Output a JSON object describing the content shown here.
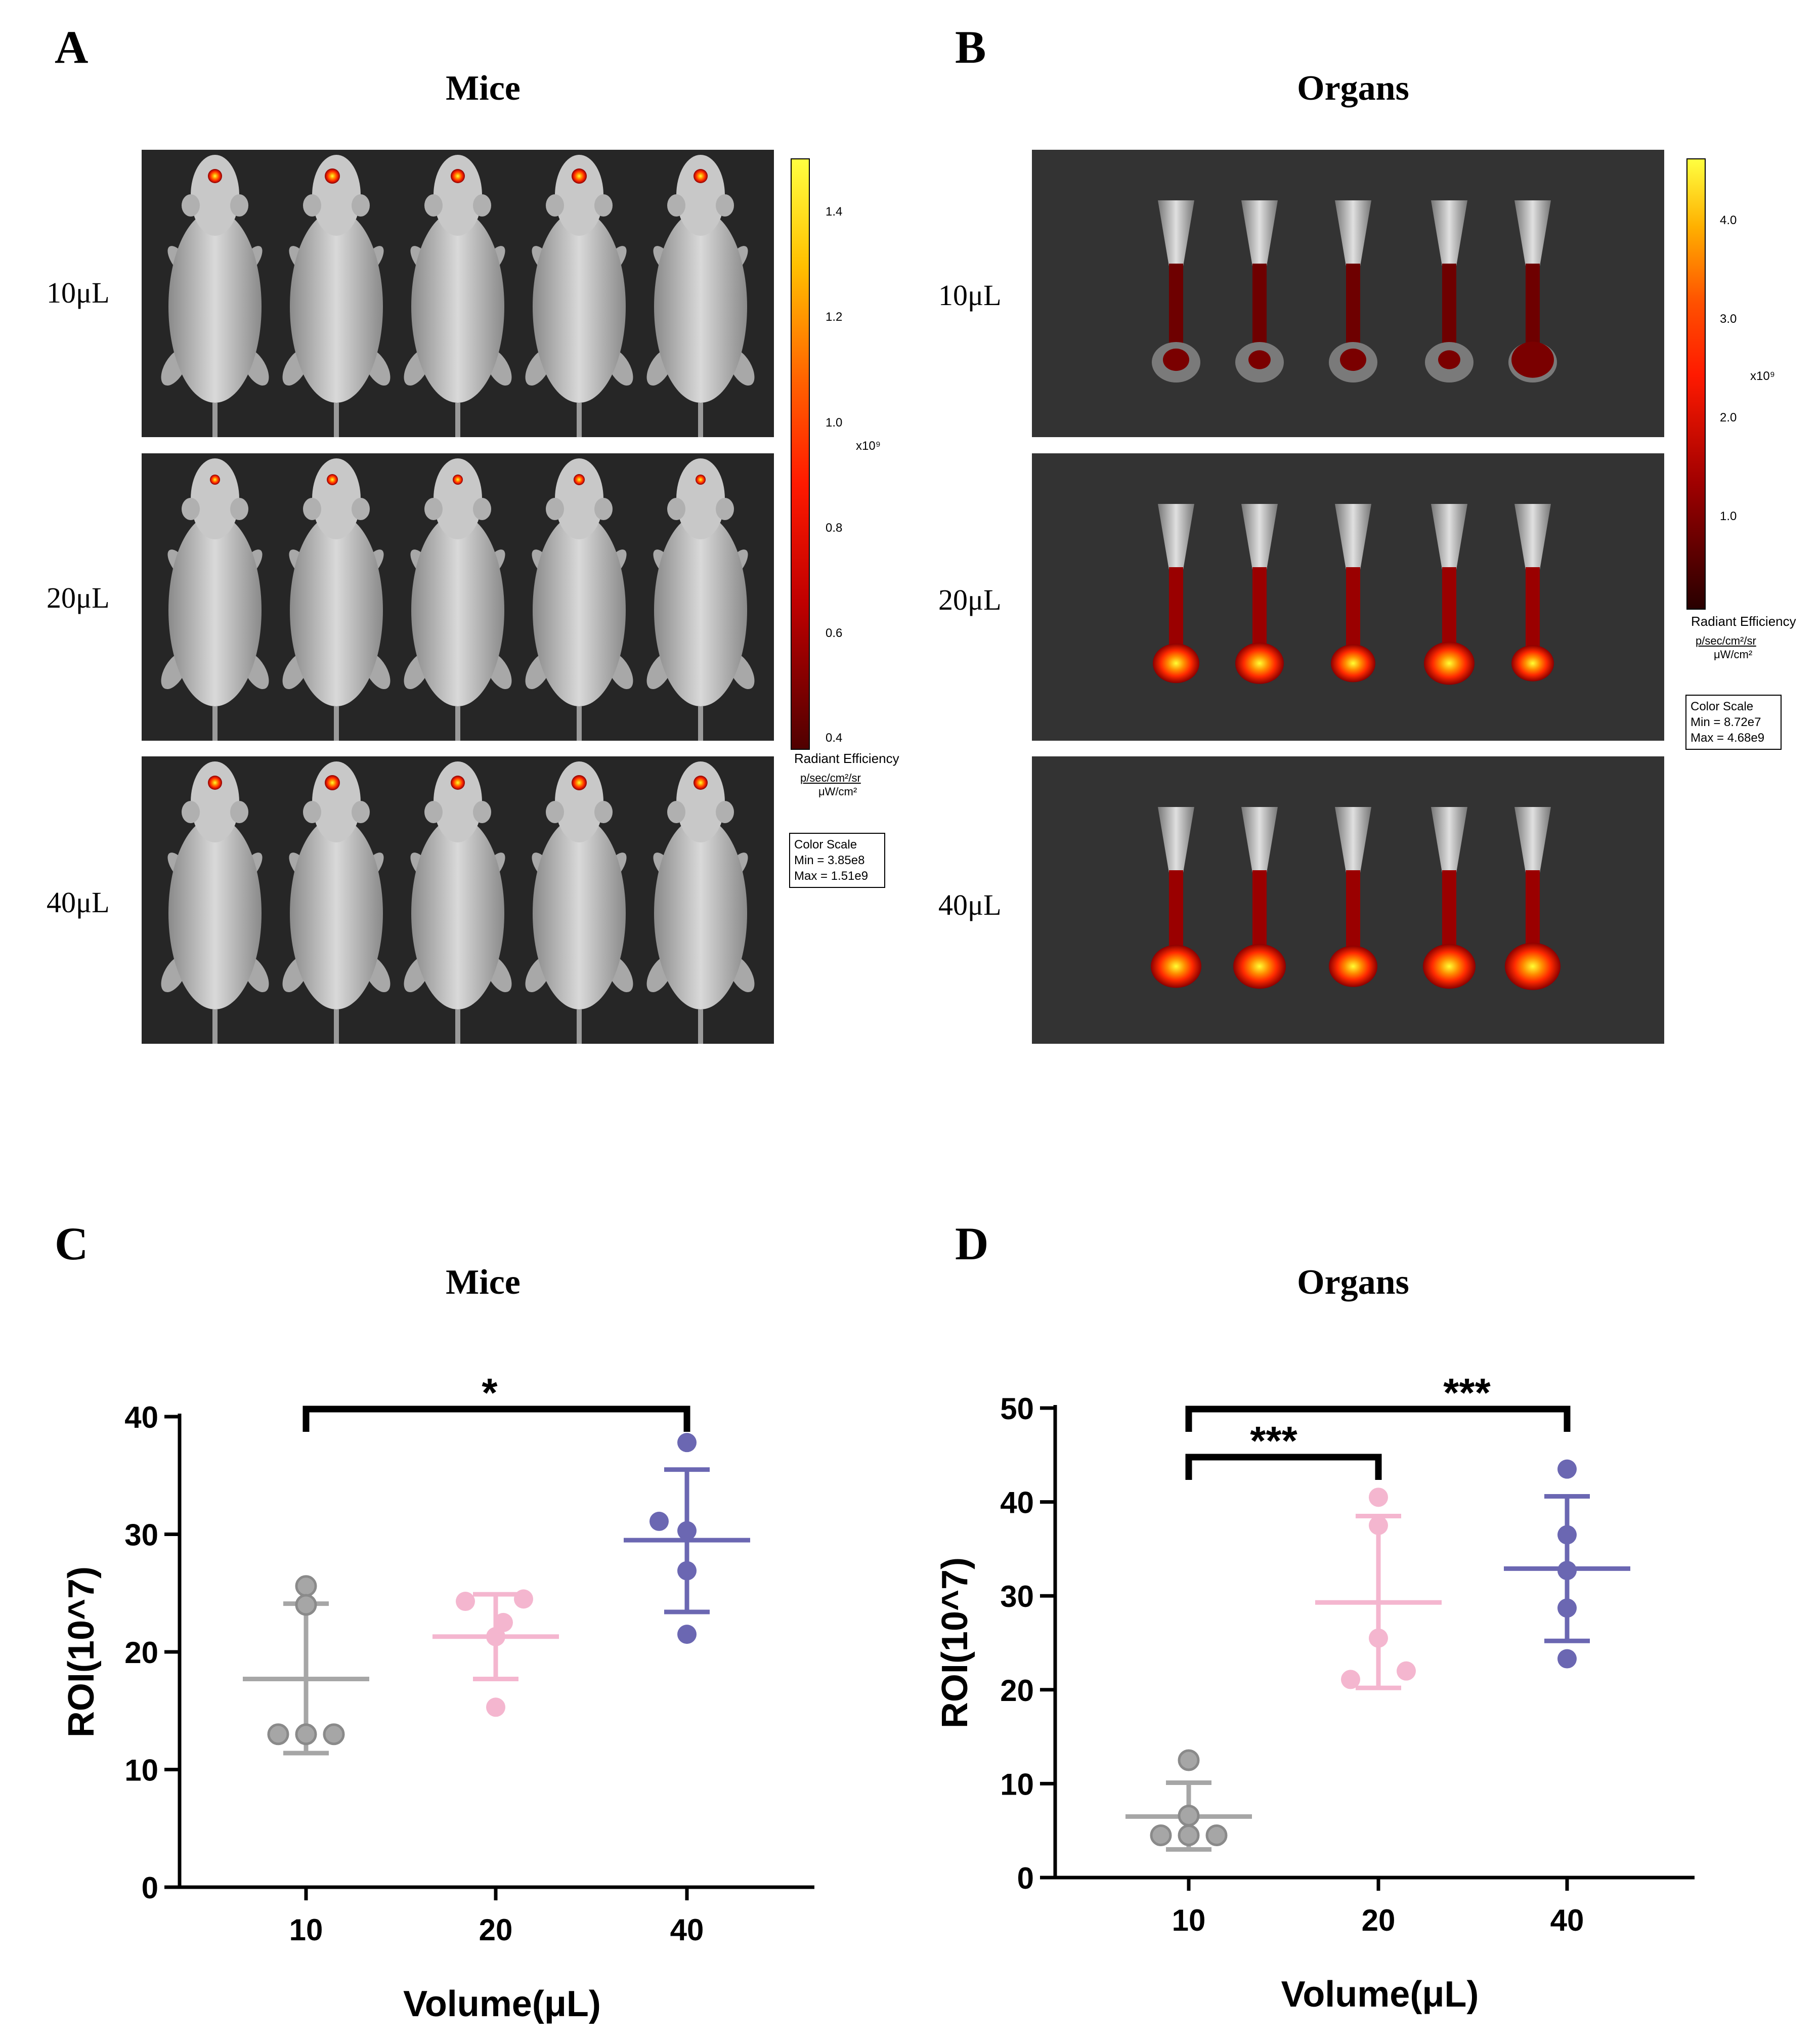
{
  "panels": {
    "A": {
      "letter": "A",
      "title": "Mice"
    },
    "B": {
      "letter": "B",
      "title": "Organs"
    },
    "C": {
      "letter": "C",
      "title": "Mice"
    },
    "D": {
      "letter": "D",
      "title": "Organs"
    }
  },
  "row_labels": [
    "10μL",
    "20μL",
    "40μL"
  ],
  "colorbar_A": {
    "ticks": [
      "1.4",
      "1.2",
      "1.0",
      "0.8",
      "0.6",
      "0.4"
    ],
    "multiplier": "x10⁹",
    "unit_title": "Radiant Efficiency",
    "unit_numerator": "p/sec/cm²/sr",
    "unit_denominator": "μW/cm²",
    "scale_title": "Color Scale",
    "scale_min": "Min = 3.85e8",
    "scale_max": "Max = 1.51e9"
  },
  "colorbar_B": {
    "ticks": [
      "4.0",
      "3.0",
      "2.0",
      "1.0"
    ],
    "multiplier": "x10⁹",
    "unit_title": "Radiant Efficiency",
    "unit_numerator": "p/sec/cm²/sr",
    "unit_denominator": "μW/cm²",
    "scale_title": "Color Scale",
    "scale_min": "Min = 8.72e7",
    "scale_max": "Max = 4.68e9"
  },
  "colors": {
    "group_10": "#a6a6a6",
    "group_20": "#f4b6cf",
    "group_40": "#6b67b2",
    "heat_low": "#8b0000",
    "heat_mid": "#ff2a00",
    "heat_high": "#ffff33"
  },
  "chart_data": [
    {
      "panel": "C",
      "type": "scatter",
      "title": "Mice",
      "xlabel": "Volume(μL)",
      "ylabel": "ROI(10^7)",
      "categories": [
        "10",
        "20",
        "40"
      ],
      "ylim": [
        0,
        40
      ],
      "yticks": [
        "0",
        "10",
        "20",
        "30",
        "40"
      ],
      "grid": false,
      "series": [
        {
          "category": "10",
          "points": [
            25.6,
            24.0,
            13.0,
            13.0,
            13.0
          ],
          "mean": 17.7,
          "sd_upper": 24.1,
          "sd_lower": 11.4
        },
        {
          "category": "20",
          "points": [
            24.5,
            24.3,
            22.5,
            21.3,
            15.3
          ],
          "mean": 21.3,
          "sd_upper": 24.9,
          "sd_lower": 17.7
        },
        {
          "category": "40",
          "points": [
            37.8,
            31.1,
            30.3,
            26.9,
            21.5
          ],
          "mean": 29.5,
          "sd_upper": 35.5,
          "sd_lower": 23.4
        }
      ],
      "significance": [
        {
          "from": "10",
          "to": "40",
          "label": "*"
        }
      ]
    },
    {
      "panel": "D",
      "type": "scatter",
      "title": "Organs",
      "xlabel": "Volume(μL)",
      "ylabel": "ROI(10^7)",
      "categories": [
        "10",
        "20",
        "40"
      ],
      "ylim": [
        0,
        50
      ],
      "yticks": [
        "0",
        "10",
        "20",
        "30",
        "40",
        "50"
      ],
      "grid": false,
      "series": [
        {
          "category": "10",
          "points": [
            12.5,
            6.6,
            4.5,
            4.5,
            4.5
          ],
          "mean": 6.5,
          "sd_upper": 10.1,
          "sd_lower": 3.0
        },
        {
          "category": "20",
          "points": [
            40.5,
            37.5,
            25.5,
            22.0,
            21.1
          ],
          "mean": 29.3,
          "sd_upper": 38.5,
          "sd_lower": 20.2
        },
        {
          "category": "40",
          "points": [
            43.5,
            36.5,
            32.7,
            28.7,
            23.3
          ],
          "mean": 32.9,
          "sd_upper": 40.6,
          "sd_lower": 25.2
        }
      ],
      "significance": [
        {
          "from": "10",
          "to": "20",
          "label": "***"
        },
        {
          "from": "10",
          "to": "40",
          "label": "***"
        }
      ]
    }
  ]
}
